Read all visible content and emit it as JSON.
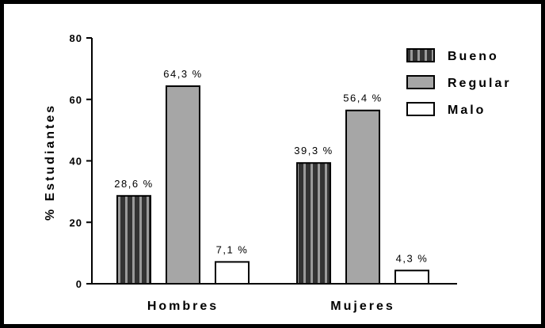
{
  "chart_data": {
    "type": "bar",
    "title": "",
    "xlabel": "",
    "ylabel": "% Estudiantes",
    "ylim": [
      0,
      80
    ],
    "yticks": [
      0,
      20,
      40,
      60,
      80
    ],
    "categories": [
      "Hombres",
      "Mujeres"
    ],
    "series": [
      {
        "name": "Bueno",
        "values": [
          28.6,
          39.3
        ],
        "labels": [
          "28,6 %",
          "39,3 %"
        ],
        "fill": "#333333",
        "pattern": "vertical-stripes"
      },
      {
        "name": "Regular",
        "values": [
          64.3,
          56.4
        ],
        "labels": [
          "64,3 %",
          "56,4 %"
        ],
        "fill": "#a6a6a6",
        "pattern": "solid"
      },
      {
        "name": "Malo",
        "values": [
          7.1,
          4.3
        ],
        "labels": [
          "7,1 %",
          "4,3 %"
        ],
        "fill": "#ffffff",
        "pattern": "solid"
      }
    ],
    "legend_position": "top-right",
    "grid": false
  }
}
